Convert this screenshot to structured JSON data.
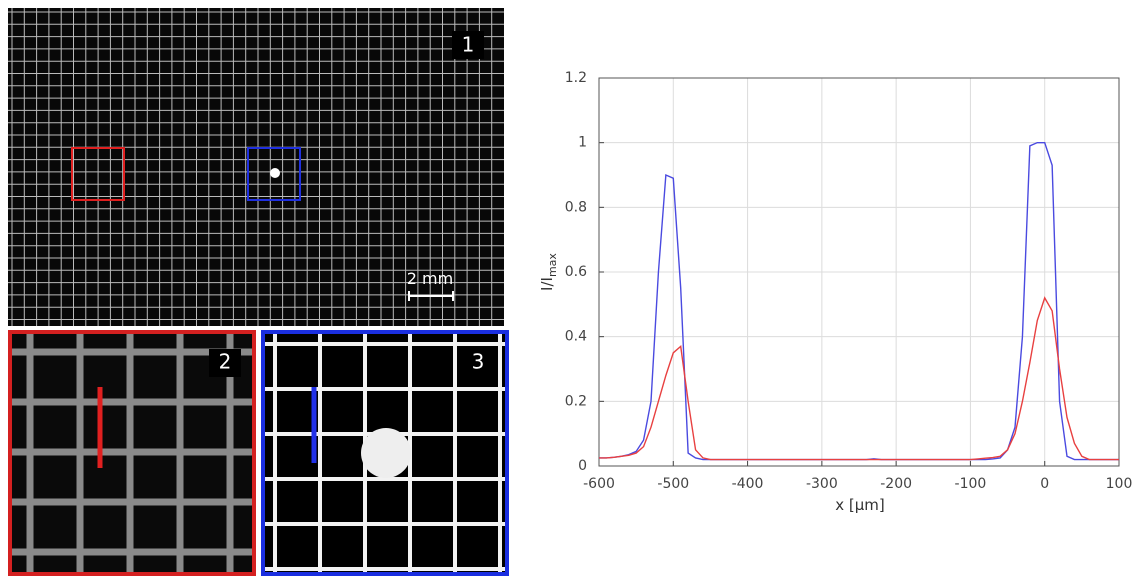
{
  "image_panels": {
    "labels": [
      "1",
      "2",
      "3"
    ],
    "scale_bar": "2 mm"
  },
  "chart_data": {
    "type": "line",
    "xlabel": "x [µm]",
    "ylabel": [
      "I/I",
      "max"
    ],
    "xlim": [
      -600,
      100
    ],
    "xticks": [
      -600,
      -500,
      -400,
      -300,
      -200,
      -100,
      0,
      100
    ],
    "ylim": [
      0,
      1.2
    ],
    "yticks": [
      0,
      0.2,
      0.4,
      0.6,
      0.8,
      1,
      1.2
    ],
    "grid": true,
    "x": [
      -600,
      -590,
      -580,
      -570,
      -560,
      -550,
      -540,
      -530,
      -520,
      -510,
      -500,
      -490,
      -480,
      -470,
      -460,
      -450,
      -440,
      -430,
      -420,
      -410,
      -400,
      -390,
      -380,
      -370,
      -360,
      -350,
      -340,
      -330,
      -320,
      -310,
      -300,
      -290,
      -280,
      -270,
      -260,
      -250,
      -240,
      -230,
      -220,
      -210,
      -200,
      -190,
      -180,
      -170,
      -160,
      -150,
      -140,
      -130,
      -120,
      -110,
      -100,
      -90,
      -80,
      -70,
      -60,
      -50,
      -40,
      -30,
      -20,
      -10,
      0,
      10,
      20,
      30,
      40,
      50,
      60,
      70,
      80,
      90,
      100
    ],
    "series": [
      {
        "color": "#4a4ae0",
        "values": [
          0.025,
          0.025,
          0.027,
          0.03,
          0.035,
          0.045,
          0.08,
          0.2,
          0.6,
          0.9,
          0.89,
          0.55,
          0.04,
          0.025,
          0.02,
          0.02,
          0.02,
          0.02,
          0.02,
          0.02,
          0.02,
          0.02,
          0.02,
          0.02,
          0.02,
          0.02,
          0.02,
          0.02,
          0.02,
          0.02,
          0.02,
          0.02,
          0.02,
          0.02,
          0.02,
          0.02,
          0.02,
          0.022,
          0.02,
          0.02,
          0.02,
          0.02,
          0.02,
          0.02,
          0.02,
          0.02,
          0.02,
          0.02,
          0.02,
          0.02,
          0.02,
          0.02,
          0.02,
          0.022,
          0.025,
          0.05,
          0.12,
          0.4,
          0.99,
          1.0,
          1.0,
          0.93,
          0.2,
          0.03,
          0.02,
          0.02,
          0.02,
          0.02,
          0.02,
          0.02,
          0.02
        ]
      },
      {
        "color": "#e84040",
        "values": [
          0.025,
          0.025,
          0.027,
          0.03,
          0.033,
          0.04,
          0.06,
          0.12,
          0.2,
          0.28,
          0.35,
          0.37,
          0.2,
          0.05,
          0.025,
          0.02,
          0.02,
          0.02,
          0.02,
          0.02,
          0.02,
          0.02,
          0.02,
          0.02,
          0.02,
          0.02,
          0.02,
          0.02,
          0.02,
          0.02,
          0.02,
          0.02,
          0.02,
          0.02,
          0.02,
          0.02,
          0.02,
          0.02,
          0.02,
          0.02,
          0.02,
          0.02,
          0.02,
          0.02,
          0.02,
          0.02,
          0.02,
          0.02,
          0.02,
          0.02,
          0.02,
          0.022,
          0.024,
          0.026,
          0.03,
          0.05,
          0.1,
          0.2,
          0.32,
          0.45,
          0.52,
          0.48,
          0.3,
          0.15,
          0.07,
          0.03,
          0.02,
          0.02,
          0.02,
          0.02,
          0.02
        ]
      }
    ]
  }
}
